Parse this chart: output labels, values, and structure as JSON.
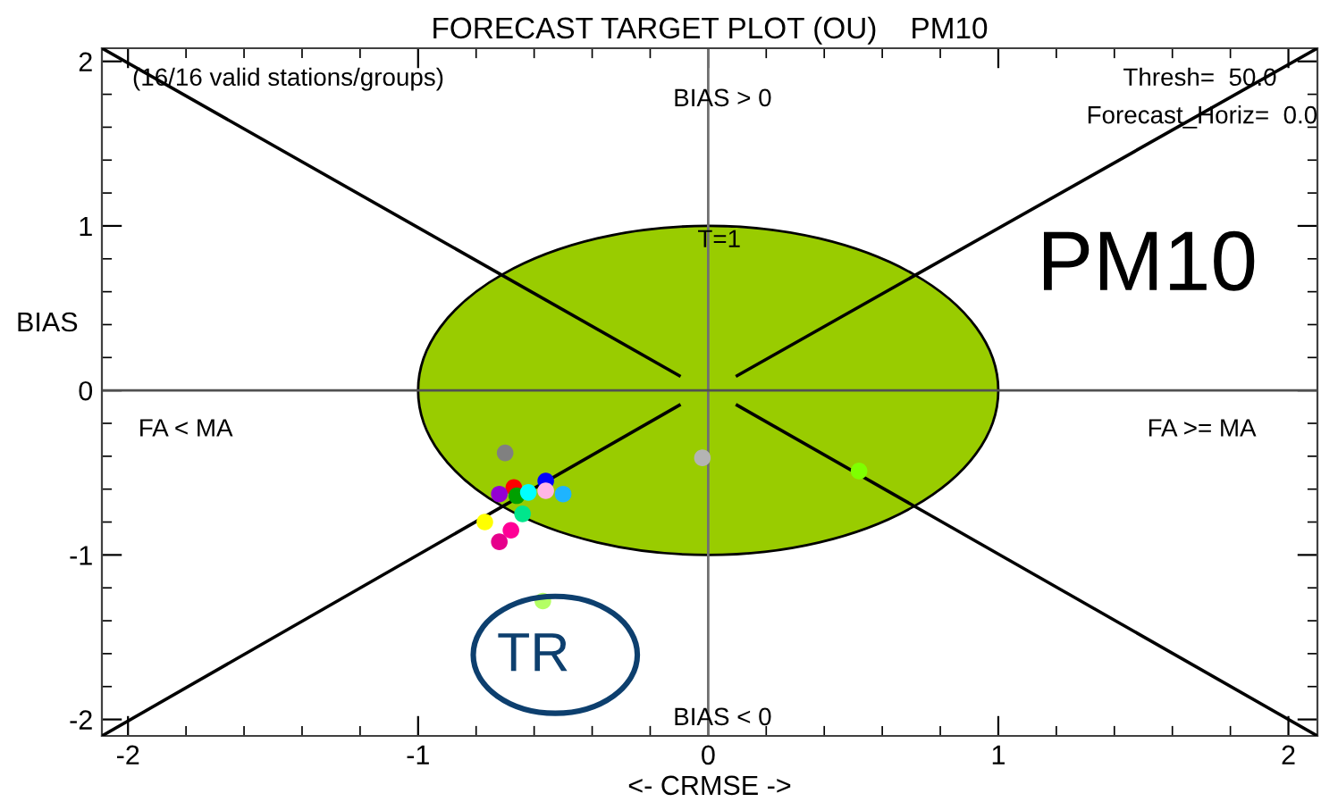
{
  "chart_data": {
    "type": "scatter",
    "title": "FORECAST TARGET PLOT (OU)    PM10",
    "xlabel": "<- CRMSE ->",
    "ylabel": "BIAS",
    "xlim": [
      -2.09,
      2.1
    ],
    "ylim": [
      -2.1,
      2.08
    ],
    "xticks": [
      -2,
      -1,
      0,
      1,
      2
    ],
    "yticks": [
      -2,
      -1,
      0,
      1,
      2
    ],
    "grid": false,
    "ref_lines": [
      {
        "axis": "x",
        "value": 0,
        "color": "#707070"
      },
      {
        "axis": "y",
        "value": 0,
        "color": "#505050"
      }
    ],
    "annotations": [
      {
        "text": "(16/16 valid stations/groups)"
      },
      {
        "text": "BIAS > 0"
      },
      {
        "text": "Thresh=  50.0"
      },
      {
        "text": "Forecast_Horiz=  0.0"
      },
      {
        "text": "T=1"
      },
      {
        "text": "PM10"
      },
      {
        "text": "FA < MA"
      },
      {
        "text": "FA >= MA"
      },
      {
        "text": "BIAS < 0"
      },
      {
        "text": "TR"
      }
    ],
    "series": [
      {
        "type": "area",
        "color": "#99cc00",
        "x": [
          -1,
          -0.99,
          -0.95,
          -0.9,
          -0.8,
          -0.7,
          -0.6,
          -0.5,
          -0.4,
          -0.3,
          -0.2,
          -0.1,
          0,
          0.1,
          0.2,
          0.3,
          0.4,
          0.5,
          0.6,
          0.7,
          0.8,
          0.9,
          0.95,
          0.99,
          1
        ],
        "values": [
          0,
          0.14,
          0.31,
          0.44,
          0.6,
          0.71,
          0.8,
          0.87,
          0.92,
          0.95,
          0.98,
          0.99,
          1,
          0.99,
          0.98,
          0.95,
          0.92,
          0.87,
          0.8,
          0.71,
          0.6,
          0.44,
          0.31,
          0.14,
          0
        ]
      },
      {
        "type": "area",
        "color": "#99cc00",
        "x": [
          -1,
          -0.99,
          -0.95,
          -0.9,
          -0.8,
          -0.7,
          -0.6,
          -0.5,
          -0.4,
          -0.3,
          -0.2,
          -0.1,
          0,
          0.1,
          0.2,
          0.3,
          0.4,
          0.5,
          0.6,
          0.7,
          0.8,
          0.9,
          0.95,
          0.99,
          1
        ],
        "values": [
          0,
          -0.14,
          -0.31,
          -0.44,
          -0.6,
          -0.71,
          -0.8,
          -0.87,
          -0.92,
          -0.95,
          -0.98,
          -0.99,
          -1,
          -0.99,
          -0.98,
          -0.95,
          -0.92,
          -0.87,
          -0.8,
          -0.71,
          -0.6,
          -0.44,
          -0.31,
          -0.14,
          0
        ]
      },
      {
        "type": "line",
        "color": "#000000",
        "x": [
          -2.09,
          -0.1
        ],
        "values": [
          2.08,
          0.09
        ]
      },
      {
        "type": "line",
        "color": "#000000",
        "x": [
          2.1,
          0.1
        ],
        "values": [
          2.08,
          0.09
        ]
      },
      {
        "type": "line",
        "color": "#000000",
        "x": [
          -2.09,
          -0.1
        ],
        "values": [
          -2.1,
          -0.09
        ]
      },
      {
        "type": "line",
        "color": "#000000",
        "x": [
          2.1,
          0.1
        ],
        "values": [
          -2.1,
          -0.09
        ]
      },
      {
        "marker": "circle",
        "x": [
          -0.7,
          -0.67,
          -0.72,
          -0.66,
          -0.62,
          -0.56,
          -0.56,
          -0.5,
          -0.64,
          -0.77,
          -0.68,
          -0.72,
          -0.57,
          -0.02,
          0.52
        ],
        "values": [
          -0.38,
          -0.59,
          -0.63,
          -0.64,
          -0.62,
          -0.55,
          -0.61,
          -0.63,
          -0.75,
          -0.8,
          -0.85,
          -0.92,
          -1.28,
          -0.41,
          -0.49
        ],
        "colors": [
          "#808080",
          "#ff0000",
          "#9400d3",
          "#00a000",
          "#00ffff",
          "#0000ff",
          "#ffb6e6",
          "#1eb4ff",
          "#00e68c",
          "#ffff00",
          "#ff0096",
          "#e6008c",
          "#b4ff64",
          "#b4b4b4",
          "#7fff00"
        ]
      }
    ]
  }
}
